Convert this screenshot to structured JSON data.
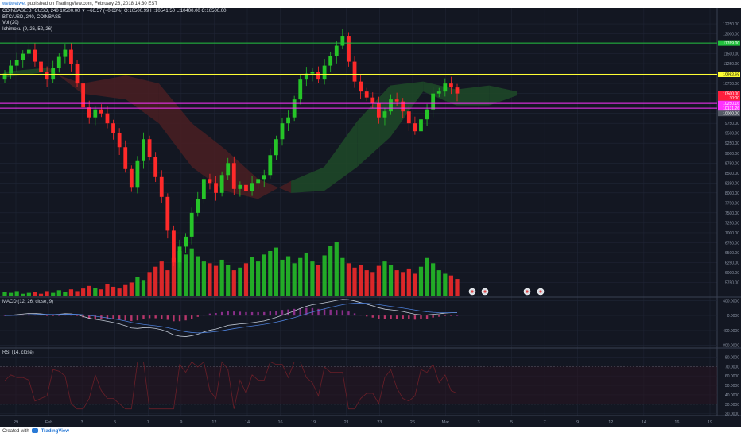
{
  "header": {
    "author": "wettwetwet",
    "published": " published on TradingView.com, February 28, 2018 14:30 EST",
    "ohlc_line": "COINBASE:BTCUSD, 240  10500.00 ▼ −66.57 (−0.63%) O:10500.99 H:10541.50 L:10400.00 C:10500.00"
  },
  "legend": {
    "symbol": "BTC/USD, 240, COINBASE",
    "volume": "Vol (20)",
    "ichimoku": "Ichimoku (9, 26, 52, 26)"
  },
  "macd_label": "MACD (12, 26, close, 9)",
  "rsi_label": "RSI (14, close)",
  "footer": {
    "created_with": "Created with",
    "brand": "TradingView"
  },
  "colors": {
    "background": "#131722",
    "grid": "#1f2535",
    "up": "#26c528",
    "down": "#ff2a2a",
    "green_line": "#22c23d",
    "yellow_line": "#ffff33",
    "magenta_line": "#ff33ff",
    "cloud_green": "#1f4a28",
    "cloud_red": "#4a1f22",
    "macd_line": "#c0c8d4",
    "signal_line": "#4c7ed6",
    "rsi_line": "#6a1f28"
  },
  "chart_data": {
    "type": "candlestick",
    "symbol": "BTC/USD",
    "exchange": "COINBASE",
    "interval": "240",
    "price_axis": {
      "ylim": [
        5400,
        12650
      ],
      "ticks": [
        "12250.00",
        "12000.00",
        "11750.00",
        "11500.00",
        "11250.00",
        "11000.00",
        "10750.00",
        "10500.00",
        "10250.00",
        "10000.00",
        "9750.00",
        "9500.00",
        "9250.00",
        "9000.00",
        "8750.00",
        "8500.00",
        "8250.00",
        "8000.00",
        "7750.00",
        "7500.00",
        "7250.00",
        "7000.00",
        "6750.00",
        "6500.00",
        "6250.00",
        "6000.00",
        "5750.00"
      ],
      "tick_values": [
        12250,
        12000,
        11750,
        11500,
        11250,
        11000,
        10750,
        10500,
        10250,
        10000,
        9750,
        9500,
        9250,
        9000,
        8750,
        8500,
        8250,
        8000,
        7750,
        7500,
        7250,
        7000,
        6750,
        6500,
        6250,
        6000,
        5750
      ]
    },
    "x_axis": {
      "labels": [
        "29",
        "Feb",
        "3",
        "5",
        "7",
        "9",
        "12",
        "14",
        "16",
        "19",
        "21",
        "23",
        "26",
        "Mar",
        "3",
        "5",
        "7",
        "9",
        "12",
        "14",
        "16",
        "19"
      ]
    },
    "price_levels": [
      {
        "label": "11769.00",
        "value": 11769,
        "color": "green"
      },
      {
        "label": "10982.68",
        "value": 10982.68,
        "color": "yellow"
      },
      {
        "label": "10500.00",
        "value": 10500,
        "color": "red"
      },
      {
        "label": "30:00",
        "value": 10390,
        "color": "red"
      },
      {
        "label": "10250.16",
        "value": 10250.16,
        "color": "magenta"
      },
      {
        "label": "10131.26",
        "value": 10131.26,
        "color": "magenta"
      },
      {
        "label": "10000.00",
        "value": 10000,
        "color": "gray"
      }
    ],
    "close": [
      11000,
      11200,
      11350,
      11500,
      11600,
      11300,
      11050,
      10850,
      11150,
      11420,
      11600,
      11250,
      10750,
      10150,
      9900,
      10100,
      10000,
      9750,
      9500,
      9150,
      8600,
      8150,
      8800,
      9350,
      8900,
      8400,
      7900,
      7050,
      6250,
      6650,
      6900,
      7500,
      7850,
      8350,
      8250,
      8000,
      8450,
      8750,
      8100,
      8200,
      8050,
      8250,
      8350,
      8450,
      8950,
      9350,
      9750,
      9900,
      10350,
      10850,
      11000,
      11050,
      10850,
      11200,
      11450,
      11700,
      11950,
      11300,
      10800,
      10550,
      10400,
      10250,
      9900,
      10050,
      10350,
      10300,
      10050,
      9750,
      9550,
      9850,
      10100,
      10500,
      10550,
      10750,
      10650,
      10500
    ],
    "ichimoku_cloud": [
      {
        "i": 0,
        "a": 11050,
        "b": 10900
      },
      {
        "i": 8,
        "a": 11150,
        "b": 11050
      },
      {
        "i": 14,
        "a": 10500,
        "b": 10750
      },
      {
        "i": 22,
        "a": 10350,
        "b": 10950
      },
      {
        "i": 28,
        "a": 9750,
        "b": 10750
      },
      {
        "i": 34,
        "a": 8650,
        "b": 9750
      },
      {
        "i": 40,
        "a": 8050,
        "b": 9100
      },
      {
        "i": 46,
        "a": 7850,
        "b": 8350
      },
      {
        "i": 52,
        "a": 8300,
        "b": 8000
      },
      {
        "i": 58,
        "a": 8650,
        "b": 8050
      },
      {
        "i": 64,
        "a": 9800,
        "b": 8650
      },
      {
        "i": 70,
        "a": 10700,
        "b": 9400
      },
      {
        "i": 76,
        "a": 10800,
        "b": 10550
      },
      {
        "i": 82,
        "a": 10600,
        "b": 10200
      },
      {
        "i": 88,
        "a": 10700,
        "b": 10200
      },
      {
        "i": 93,
        "a": 10550,
        "b": 10450
      }
    ],
    "volume": [
      5,
      4,
      6,
      3,
      4,
      5,
      3,
      6,
      4,
      7,
      5,
      8,
      6,
      9,
      12,
      10,
      8,
      14,
      11,
      9,
      13,
      16,
      22,
      18,
      28,
      34,
      40,
      30,
      44,
      52,
      48,
      55,
      46,
      40,
      38,
      35,
      42,
      36,
      30,
      33,
      38,
      45,
      40,
      48,
      52,
      56,
      42,
      46,
      38,
      44,
      50,
      40,
      36,
      47,
      58,
      62,
      44,
      38,
      33,
      36,
      30,
      28,
      35,
      40,
      36,
      30,
      28,
      32,
      26,
      34,
      44,
      38,
      30,
      26,
      24,
      20
    ],
    "macd": {
      "ylim": [
        -850,
        450
      ],
      "ticks": [
        "400.0000",
        "0.0000",
        "-400.0000",
        "-800.0000"
      ],
      "tick_values": [
        400,
        0,
        -400,
        -800
      ]
    },
    "rsi": {
      "ylim": [
        18,
        88
      ],
      "ticks": [
        "80.0000",
        "70.0000",
        "60.0000",
        "50.0000",
        "40.0000",
        "30.0000",
        "20.0000"
      ],
      "tick_values": [
        80,
        70,
        60,
        50,
        40,
        30,
        20
      ],
      "bands": [
        70,
        30
      ]
    }
  }
}
